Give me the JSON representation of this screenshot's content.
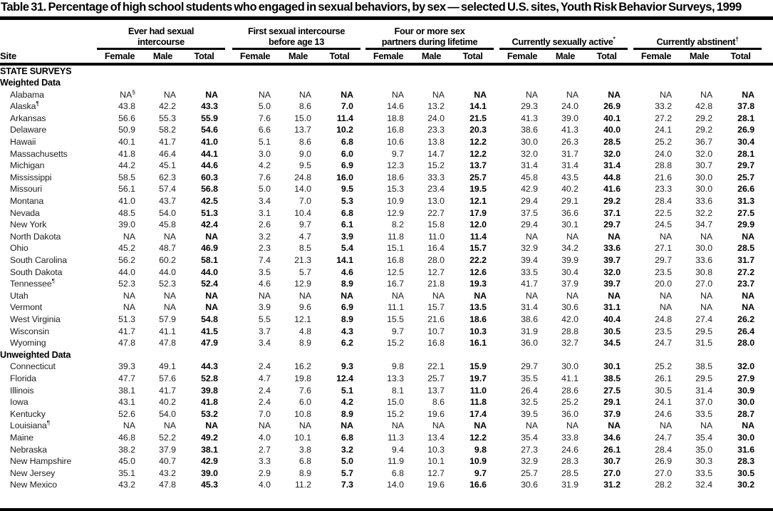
{
  "title": "Table 31. Percentage of high school students who engaged in sexual behaviors, by sex — selected U.S. sites, Youth Risk Behavior Surveys, 1999",
  "colors": {
    "rule": "#000000",
    "text": "#000000"
  },
  "table": {
    "site_header": "Site",
    "sub_columns": [
      "Female",
      "Male",
      "Total"
    ],
    "groups": [
      {
        "lines": [
          "Ever had sexual",
          "intercourse"
        ]
      },
      {
        "lines": [
          "First sexual intercourse",
          "before age 13"
        ]
      },
      {
        "lines": [
          "Four or more sex",
          "partners during lifetime"
        ]
      },
      {
        "lines": [
          "Currently sexually active*"
        ]
      },
      {
        "lines": [
          "Currently abstinent†"
        ]
      }
    ],
    "sections": [
      {
        "header": "STATE SURVEYS",
        "subsections": [
          {
            "label": "Weighted Data",
            "rows": [
              {
                "site": "Alabama",
                "values": [
                  "NA§",
                  "NA",
                  "NA",
                  "NA",
                  "NA",
                  "NA",
                  "NA",
                  "NA",
                  "NA",
                  "NA",
                  "NA",
                  "NA",
                  "NA",
                  "NA",
                  "NA"
                ]
              },
              {
                "site": "Alaska¶",
                "values": [
                  "43.8",
                  "42.2",
                  "43.3",
                  "5.0",
                  "8.6",
                  "7.0",
                  "14.6",
                  "13.2",
                  "14.1",
                  "29.3",
                  "24.0",
                  "26.9",
                  "33.2",
                  "42.8",
                  "37.8"
                ]
              },
              {
                "site": "Arkansas",
                "values": [
                  "56.6",
                  "55.3",
                  "55.9",
                  "7.6",
                  "15.0",
                  "11.4",
                  "18.8",
                  "24.0",
                  "21.5",
                  "41.3",
                  "39.0",
                  "40.1",
                  "27.2",
                  "29.2",
                  "28.1"
                ]
              },
              {
                "site": "Delaware",
                "values": [
                  "50.9",
                  "58.2",
                  "54.6",
                  "6.6",
                  "13.7",
                  "10.2",
                  "16.8",
                  "23.3",
                  "20.3",
                  "38.6",
                  "41.3",
                  "40.0",
                  "24.1",
                  "29.2",
                  "26.9"
                ]
              },
              {
                "site": "Hawaii",
                "values": [
                  "40.1",
                  "41.7",
                  "41.0",
                  "5.1",
                  "8.6",
                  "6.8",
                  "10.6",
                  "13.8",
                  "12.2",
                  "30.0",
                  "26.3",
                  "28.5",
                  "25.2",
                  "36.7",
                  "30.4"
                ]
              },
              {
                "site": "Massachusetts",
                "values": [
                  "41.8",
                  "46.4",
                  "44.1",
                  "3.0",
                  "9.0",
                  "6.0",
                  "9.7",
                  "14.7",
                  "12.2",
                  "32.0",
                  "31.7",
                  "32.0",
                  "24.0",
                  "32.0",
                  "28.1"
                ]
              },
              {
                "site": "Michigan",
                "values": [
                  "44.2",
                  "45.1",
                  "44.6",
                  "4.2",
                  "9.5",
                  "6.9",
                  "12.3",
                  "15.2",
                  "13.7",
                  "31.4",
                  "31.4",
                  "31.4",
                  "28.8",
                  "30.7",
                  "29.7"
                ]
              },
              {
                "site": "Mississippi",
                "values": [
                  "58.5",
                  "62.3",
                  "60.3",
                  "7.6",
                  "24.8",
                  "16.0",
                  "18.6",
                  "33.3",
                  "25.7",
                  "45.8",
                  "43.5",
                  "44.8",
                  "21.6",
                  "30.0",
                  "25.7"
                ]
              },
              {
                "site": "Missouri",
                "values": [
                  "56.1",
                  "57.4",
                  "56.8",
                  "5.0",
                  "14.0",
                  "9.5",
                  "15.3",
                  "23.4",
                  "19.5",
                  "42.9",
                  "40.2",
                  "41.6",
                  "23.3",
                  "30.0",
                  "26.6"
                ]
              },
              {
                "site": "Montana",
                "values": [
                  "41.0",
                  "43.7",
                  "42.5",
                  "3.4",
                  "7.0",
                  "5.3",
                  "10.9",
                  "13.0",
                  "12.1",
                  "29.4",
                  "29.1",
                  "29.2",
                  "28.4",
                  "33.6",
                  "31.3"
                ]
              },
              {
                "site": "Nevada",
                "values": [
                  "48.5",
                  "54.0",
                  "51.3",
                  "3.1",
                  "10.4",
                  "6.8",
                  "12.9",
                  "22.7",
                  "17.9",
                  "37.5",
                  "36.6",
                  "37.1",
                  "22.5",
                  "32.2",
                  "27.5"
                ]
              },
              {
                "site": "New York",
                "values": [
                  "39.0",
                  "45.8",
                  "42.4",
                  "2.6",
                  "9.7",
                  "6.1",
                  "8.2",
                  "15.8",
                  "12.0",
                  "29.4",
                  "30.1",
                  "29.7",
                  "24.5",
                  "34.7",
                  "29.9"
                ]
              },
              {
                "site": "North Dakota",
                "values": [
                  "NA",
                  "NA",
                  "NA",
                  "3.2",
                  "4.7",
                  "3.9",
                  "11.8",
                  "11.0",
                  "11.4",
                  "NA",
                  "NA",
                  "NA",
                  "NA",
                  "NA",
                  "NA"
                ]
              },
              {
                "site": "Ohio",
                "values": [
                  "45.2",
                  "48.7",
                  "46.9",
                  "2.3",
                  "8.5",
                  "5.4",
                  "15.1",
                  "16.4",
                  "15.7",
                  "32.9",
                  "34.2",
                  "33.6",
                  "27.1",
                  "30.0",
                  "28.5"
                ]
              },
              {
                "site": "South Carolina",
                "values": [
                  "56.2",
                  "60.2",
                  "58.1",
                  "7.4",
                  "21.3",
                  "14.1",
                  "16.8",
                  "28.0",
                  "22.2",
                  "39.4",
                  "39.9",
                  "39.7",
                  "29.7",
                  "33.6",
                  "31.7"
                ]
              },
              {
                "site": "South Dakota",
                "values": [
                  "44.0",
                  "44.0",
                  "44.0",
                  "3.5",
                  "5.7",
                  "4.6",
                  "12.5",
                  "12.7",
                  "12.6",
                  "33.5",
                  "30.4",
                  "32.0",
                  "23.5",
                  "30.8",
                  "27.2"
                ]
              },
              {
                "site": "Tennessee¶",
                "values": [
                  "52.3",
                  "52.3",
                  "52.4",
                  "4.6",
                  "12.9",
                  "8.9",
                  "16.7",
                  "21.8",
                  "19.3",
                  "41.7",
                  "37.9",
                  "39.7",
                  "20.0",
                  "27.0",
                  "23.7"
                ]
              },
              {
                "site": "Utah",
                "values": [
                  "NA",
                  "NA",
                  "NA",
                  "NA",
                  "NA",
                  "NA",
                  "NA",
                  "NA",
                  "NA",
                  "NA",
                  "NA",
                  "NA",
                  "NA",
                  "NA",
                  "NA"
                ]
              },
              {
                "site": "Vermont",
                "values": [
                  "NA",
                  "NA",
                  "NA",
                  "3.9",
                  "9.6",
                  "6.9",
                  "11.1",
                  "15.7",
                  "13.5",
                  "31.4",
                  "30.6",
                  "31.1",
                  "NA",
                  "NA",
                  "NA"
                ]
              },
              {
                "site": "West Virginia",
                "values": [
                  "51.3",
                  "57.9",
                  "54.8",
                  "5.5",
                  "12.1",
                  "8.9",
                  "15.5",
                  "21.6",
                  "18.6",
                  "38.6",
                  "42.0",
                  "40.4",
                  "24.8",
                  "27.4",
                  "26.2"
                ]
              },
              {
                "site": "Wisconsin",
                "values": [
                  "41.7",
                  "41.1",
                  "41.5",
                  "3.7",
                  "4.8",
                  "4.3",
                  "9.7",
                  "10.7",
                  "10.3",
                  "31.9",
                  "28.8",
                  "30.5",
                  "23.5",
                  "29.5",
                  "26.4"
                ]
              },
              {
                "site": "Wyoming",
                "values": [
                  "47.8",
                  "47.8",
                  "47.9",
                  "3.4",
                  "8.9",
                  "6.2",
                  "15.2",
                  "16.8",
                  "16.1",
                  "36.0",
                  "32.7",
                  "34.5",
                  "24.7",
                  "31.5",
                  "28.0"
                ]
              }
            ]
          },
          {
            "label": "Unweighted Data",
            "rows": [
              {
                "site": "Connecticut",
                "values": [
                  "39.3",
                  "49.1",
                  "44.3",
                  "2.4",
                  "16.2",
                  "9.3",
                  "9.8",
                  "22.1",
                  "15.9",
                  "29.7",
                  "30.0",
                  "30.1",
                  "25.2",
                  "38.5",
                  "32.0"
                ]
              },
              {
                "site": "Florida",
                "values": [
                  "47.7",
                  "57.6",
                  "52.8",
                  "4.7",
                  "19.8",
                  "12.4",
                  "13.3",
                  "25.7",
                  "19.7",
                  "35.5",
                  "41.1",
                  "38.5",
                  "26.1",
                  "29.5",
                  "27.9"
                ]
              },
              {
                "site": "Illinois",
                "values": [
                  "38.1",
                  "41.7",
                  "39.8",
                  "2.4",
                  "7.6",
                  "5.1",
                  "8.1",
                  "13.7",
                  "11.0",
                  "26.4",
                  "28.6",
                  "27.5",
                  "30.5",
                  "31.4",
                  "30.9"
                ]
              },
              {
                "site": "Iowa",
                "values": [
                  "43.1",
                  "40.2",
                  "41.8",
                  "2.4",
                  "6.0",
                  "4.2",
                  "15.0",
                  "8.6",
                  "11.8",
                  "32.5",
                  "25.2",
                  "29.1",
                  "24.1",
                  "37.0",
                  "30.0"
                ]
              },
              {
                "site": "Kentucky",
                "values": [
                  "52.6",
                  "54.0",
                  "53.2",
                  "7.0",
                  "10.8",
                  "8.9",
                  "15.2",
                  "19.6",
                  "17.4",
                  "39.5",
                  "36.0",
                  "37.9",
                  "24.6",
                  "33.5",
                  "28.7"
                ]
              },
              {
                "site": "Louisiana¶",
                "values": [
                  "NA",
                  "NA",
                  "NA",
                  "NA",
                  "NA",
                  "NA",
                  "NA",
                  "NA",
                  "NA",
                  "NA",
                  "NA",
                  "NA",
                  "NA",
                  "NA",
                  "NA"
                ]
              },
              {
                "site": "Maine",
                "values": [
                  "46.8",
                  "52.2",
                  "49.2",
                  "4.0",
                  "10.1",
                  "6.8",
                  "11.3",
                  "13.4",
                  "12.2",
                  "35.4",
                  "33.8",
                  "34.6",
                  "24.7",
                  "35.4",
                  "30.0"
                ]
              },
              {
                "site": "Nebraska",
                "values": [
                  "38.2",
                  "37.9",
                  "38.1",
                  "2.7",
                  "3.8",
                  "3.2",
                  "9.4",
                  "10.3",
                  "9.8",
                  "27.3",
                  "24.6",
                  "26.1",
                  "28.4",
                  "35.0",
                  "31.6"
                ]
              },
              {
                "site": "New Hampshire",
                "values": [
                  "45.0",
                  "40.7",
                  "42.9",
                  "3.3",
                  "6.8",
                  "5.0",
                  "11.9",
                  "10.1",
                  "10.9",
                  "32.9",
                  "28.3",
                  "30.7",
                  "26.9",
                  "30.3",
                  "28.3"
                ]
              },
              {
                "site": "New Jersey",
                "values": [
                  "35.1",
                  "43.2",
                  "39.0",
                  "2.9",
                  "8.9",
                  "5.7",
                  "6.8",
                  "12.7",
                  "9.7",
                  "25.7",
                  "28.5",
                  "27.0",
                  "27.0",
                  "33.5",
                  "30.5"
                ]
              },
              {
                "site": "New Mexico",
                "values": [
                  "43.2",
                  "47.8",
                  "45.3",
                  "4.0",
                  "11.2",
                  "7.3",
                  "14.0",
                  "19.6",
                  "16.6",
                  "30.6",
                  "31.9",
                  "31.2",
                  "28.2",
                  "32.4",
                  "30.2"
                ]
              }
            ]
          }
        ]
      }
    ]
  }
}
